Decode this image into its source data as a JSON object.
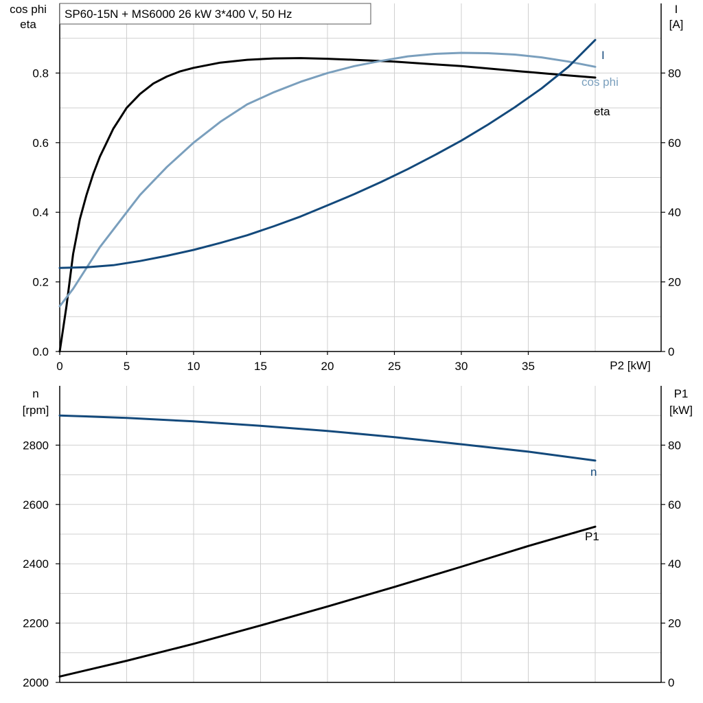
{
  "chart_data": [
    {
      "type": "line",
      "title": "SP60-15N + MS6000   26 kW   3*400 V, 50 Hz",
      "xlabel": "P2 [kW]",
      "xlim": [
        0,
        40
      ],
      "xticks": [
        0,
        5,
        10,
        15,
        20,
        25,
        30,
        35
      ],
      "ylabel_left": [
        "cos phi",
        "eta"
      ],
      "ylim_left": [
        0,
        1.0
      ],
      "yticks_left": [
        "0.0",
        "0.2",
        "0.4",
        "0.6",
        "0.8"
      ],
      "ylabel_right": [
        "I",
        "[A]"
      ],
      "ylim_right": [
        0,
        100
      ],
      "yticks_right": [
        "0",
        "20",
        "40",
        "60",
        "80"
      ],
      "grid": true,
      "series": [
        {
          "name": "eta",
          "axis": "left",
          "color": "#000000",
          "points": [
            [
              0,
              0
            ],
            [
              0.5,
              0.13
            ],
            [
              1,
              0.28
            ],
            [
              1.5,
              0.38
            ],
            [
              2,
              0.45
            ],
            [
              2.5,
              0.51
            ],
            [
              3,
              0.56
            ],
            [
              3.5,
              0.6
            ],
            [
              4,
              0.64
            ],
            [
              4.5,
              0.67
            ],
            [
              5,
              0.7
            ],
            [
              6,
              0.74
            ],
            [
              7,
              0.77
            ],
            [
              8,
              0.79
            ],
            [
              9,
              0.805
            ],
            [
              10,
              0.815
            ],
            [
              12,
              0.83
            ],
            [
              14,
              0.838
            ],
            [
              16,
              0.842
            ],
            [
              18,
              0.843
            ],
            [
              20,
              0.841
            ],
            [
              22,
              0.838
            ],
            [
              25,
              0.833
            ],
            [
              28,
              0.825
            ],
            [
              30,
              0.82
            ],
            [
              32,
              0.813
            ],
            [
              35,
              0.803
            ],
            [
              38,
              0.793
            ],
            [
              40,
              0.787
            ]
          ]
        },
        {
          "name": "cos phi",
          "axis": "left",
          "color": "#7a9fbd",
          "points": [
            [
              0,
              0.13
            ],
            [
              1,
              0.18
            ],
            [
              2,
              0.24
            ],
            [
              3,
              0.3
            ],
            [
              4,
              0.35
            ],
            [
              5,
              0.4
            ],
            [
              6,
              0.45
            ],
            [
              7,
              0.49
            ],
            [
              8,
              0.53
            ],
            [
              10,
              0.6
            ],
            [
              12,
              0.66
            ],
            [
              14,
              0.71
            ],
            [
              16,
              0.745
            ],
            [
              18,
              0.775
            ],
            [
              20,
              0.8
            ],
            [
              22,
              0.82
            ],
            [
              24,
              0.835
            ],
            [
              26,
              0.848
            ],
            [
              28,
              0.855
            ],
            [
              30,
              0.858
            ],
            [
              32,
              0.857
            ],
            [
              34,
              0.853
            ],
            [
              36,
              0.845
            ],
            [
              38,
              0.833
            ],
            [
              40,
              0.818
            ]
          ]
        },
        {
          "name": "I",
          "axis": "right",
          "color": "#13497b",
          "points": [
            [
              0,
              24
            ],
            [
              2,
              24.2
            ],
            [
              4,
              24.8
            ],
            [
              6,
              26
            ],
            [
              8,
              27.5
            ],
            [
              10,
              29.2
            ],
            [
              12,
              31.2
            ],
            [
              14,
              33.4
            ],
            [
              16,
              36
            ],
            [
              18,
              38.8
            ],
            [
              20,
              42
            ],
            [
              22,
              45.2
            ],
            [
              24,
              48.7
            ],
            [
              26,
              52.4
            ],
            [
              28,
              56.4
            ],
            [
              30,
              60.6
            ],
            [
              32,
              65.2
            ],
            [
              34,
              70.2
            ],
            [
              36,
              75.6
            ],
            [
              38,
              81.8
            ],
            [
              40,
              89.5
            ]
          ]
        }
      ]
    },
    {
      "type": "line",
      "xlim": [
        0,
        40
      ],
      "ylabel_left": [
        "n",
        "[rpm]"
      ],
      "ylim_left": [
        2000,
        3000
      ],
      "yticks_left": [
        "2000",
        "2200",
        "2400",
        "2600",
        "2800"
      ],
      "ylabel_right": [
        "P1",
        "[kW]"
      ],
      "ylim_right": [
        0,
        100
      ],
      "yticks_right": [
        "0",
        "20",
        "40",
        "60",
        "80"
      ],
      "grid": true,
      "series": [
        {
          "name": "n",
          "axis": "left",
          "color": "#13497b",
          "points": [
            [
              0,
              2900
            ],
            [
              5,
              2892
            ],
            [
              10,
              2880
            ],
            [
              15,
              2865
            ],
            [
              20,
              2848
            ],
            [
              25,
              2827
            ],
            [
              30,
              2803
            ],
            [
              35,
              2778
            ],
            [
              40,
              2748
            ]
          ]
        },
        {
          "name": "P1",
          "axis": "right",
          "color": "#000000",
          "points": [
            [
              0,
              2
            ],
            [
              5,
              7.3
            ],
            [
              10,
              13
            ],
            [
              15,
              19.2
            ],
            [
              20,
              25.6
            ],
            [
              25,
              32.2
            ],
            [
              30,
              39
            ],
            [
              35,
              46
            ],
            [
              40,
              52.5
            ]
          ]
        }
      ]
    }
  ]
}
